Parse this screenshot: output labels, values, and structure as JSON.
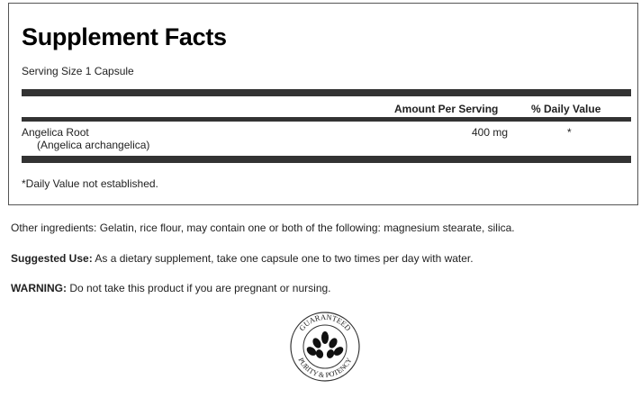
{
  "facts": {
    "title": "Supplement Facts",
    "serving_size": "Serving Size 1 Capsule",
    "headers": {
      "amount": "Amount Per Serving",
      "dv": "% Daily Value"
    },
    "rows": [
      {
        "name": "Angelica Root",
        "sub": "(Angelica archangelica)",
        "amount": "400 mg",
        "dv": "*"
      }
    ],
    "footnote": "*Daily Value not established."
  },
  "other_ingredients": "Other ingredients: Gelatin, rice flour, may contain one or both of the following: magnesium stearate, silica.",
  "suggested_use": {
    "label": "Suggested Use:",
    "text": " As a dietary supplement, take one capsule one to two times per day with water."
  },
  "warning": {
    "label": "WARNING:",
    "text": " Do not take this product if you are pregnant or nursing."
  },
  "seal": {
    "top_text": "GUARANTEED",
    "bottom_text": "PURITY & POTENCY",
    "icon": "leaf-icon"
  }
}
